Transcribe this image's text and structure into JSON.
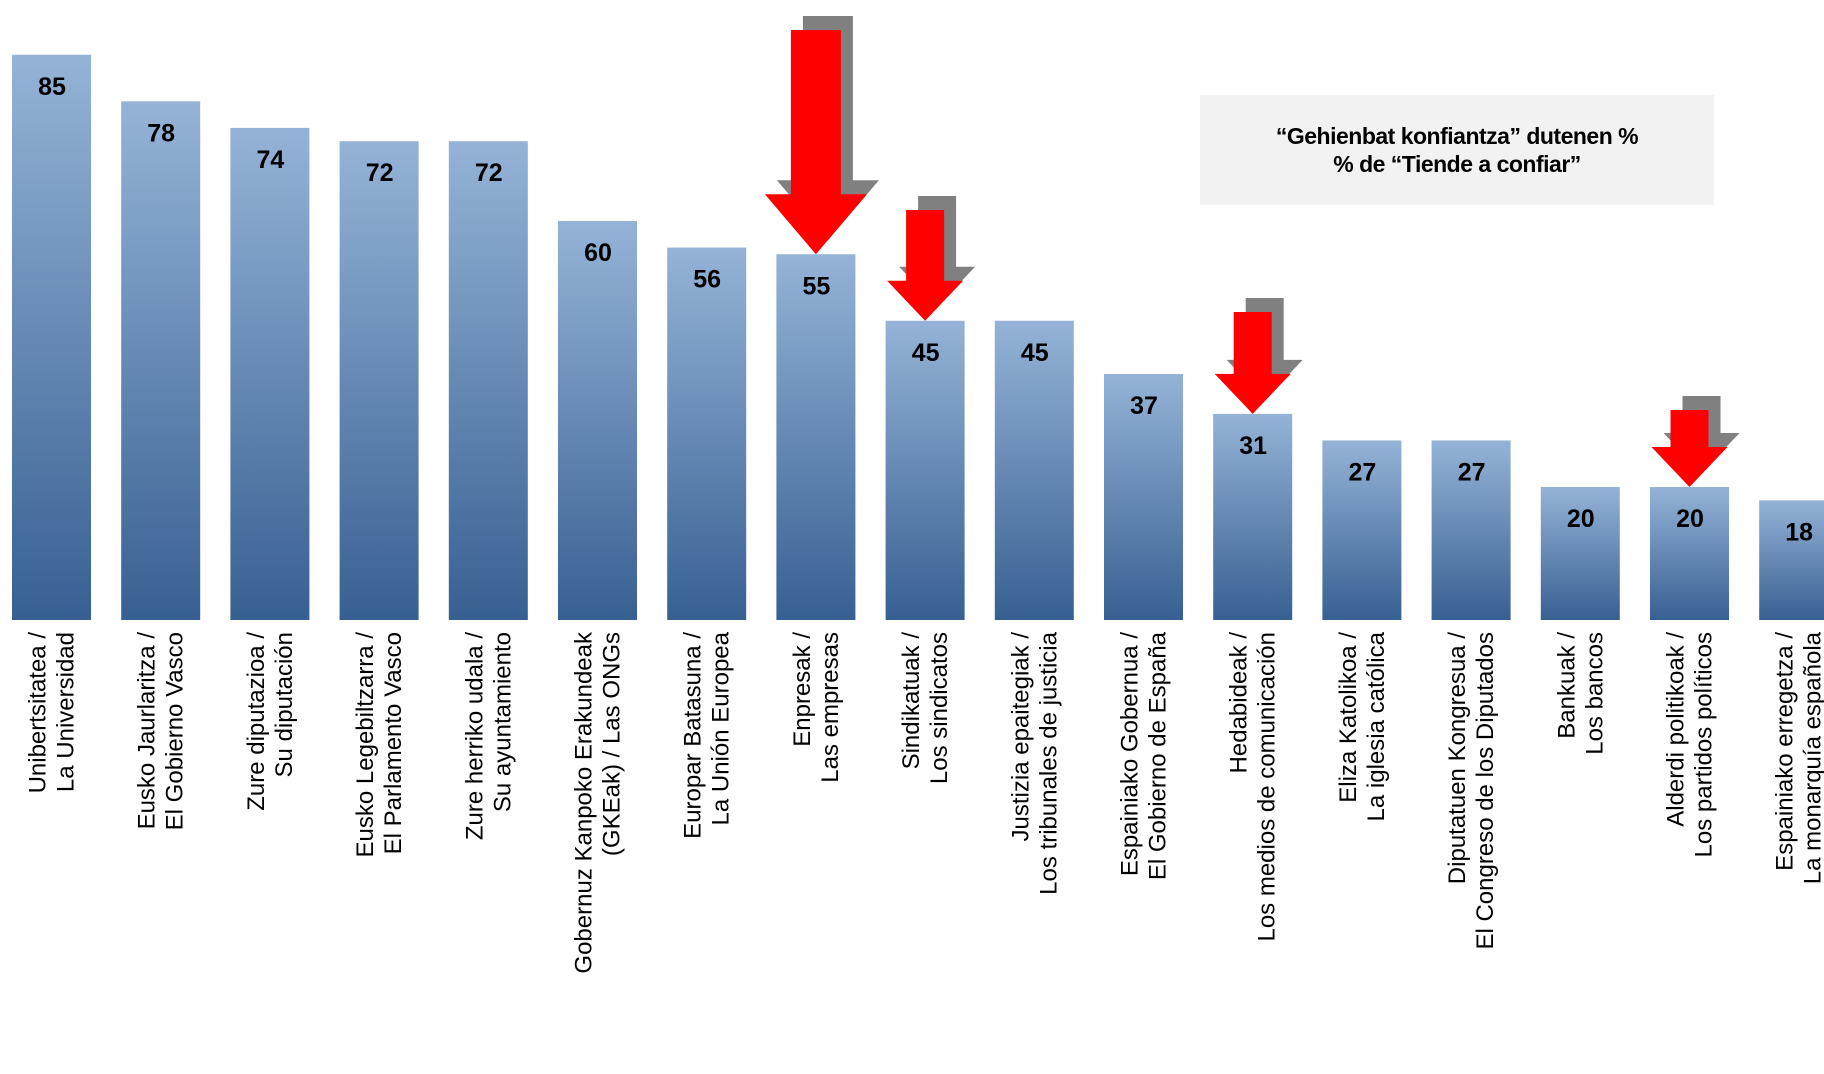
{
  "chart_data": {
    "type": "bar",
    "title": "",
    "legend": {
      "placement": "top-right",
      "lines": [
        "“Gehienbat konfiantza” dutenen %",
        "% de “Tiende a confiar”"
      ]
    },
    "categories": [
      [
        "Unibertsitatea /",
        "La Universidad"
      ],
      [
        "Eusko Jaurlaritza /",
        "El Gobierno Vasco"
      ],
      [
        "Zure diputazioa /",
        "Su diputación"
      ],
      [
        "Eusko Legebiltzarra /",
        "El Parlamento Vasco"
      ],
      [
        "Zure herriko udala /",
        "Su ayuntamiento"
      ],
      [
        "Gobernuz Kanpoko Erakundeak",
        "(GKEak) / Las ONGs"
      ],
      [
        "Europar Batasuna /",
        "La Unión Europea"
      ],
      [
        "Enpresak /",
        "Las empresas"
      ],
      [
        "Sindikatuak /",
        "Los sindicatos"
      ],
      [
        "Justizia epaitegiak /",
        "Los tribunales de justicia"
      ],
      [
        "Espainiako Gobernua /",
        "El Gobierno de España"
      ],
      [
        "Hedabideak /",
        "Los medios de comunicación"
      ],
      [
        "Eliza Katolikoa /",
        "La iglesia católica"
      ],
      [
        "Diputatuen Kongresua /",
        "El Congreso de los Diputados"
      ],
      [
        "Bankuak /",
        "Los bancos"
      ],
      [
        "Alderdi politikoak /",
        "Los partidos políticos"
      ],
      [
        "Espainiako erregetza /",
        "La monarquía española"
      ]
    ],
    "values": [
      85,
      78,
      74,
      72,
      72,
      60,
      56,
      55,
      45,
      45,
      37,
      31,
      27,
      27,
      20,
      20,
      18
    ],
    "ylim": [
      0,
      100
    ],
    "grid": false,
    "bar_color_top": "#95b3d7",
    "bar_color_bottom": "#376092",
    "annotations": {
      "type": "down-arrow",
      "color": "#ff0000",
      "shadow_color": "#808080",
      "on_categories": [
        7,
        8,
        11,
        15
      ]
    }
  }
}
